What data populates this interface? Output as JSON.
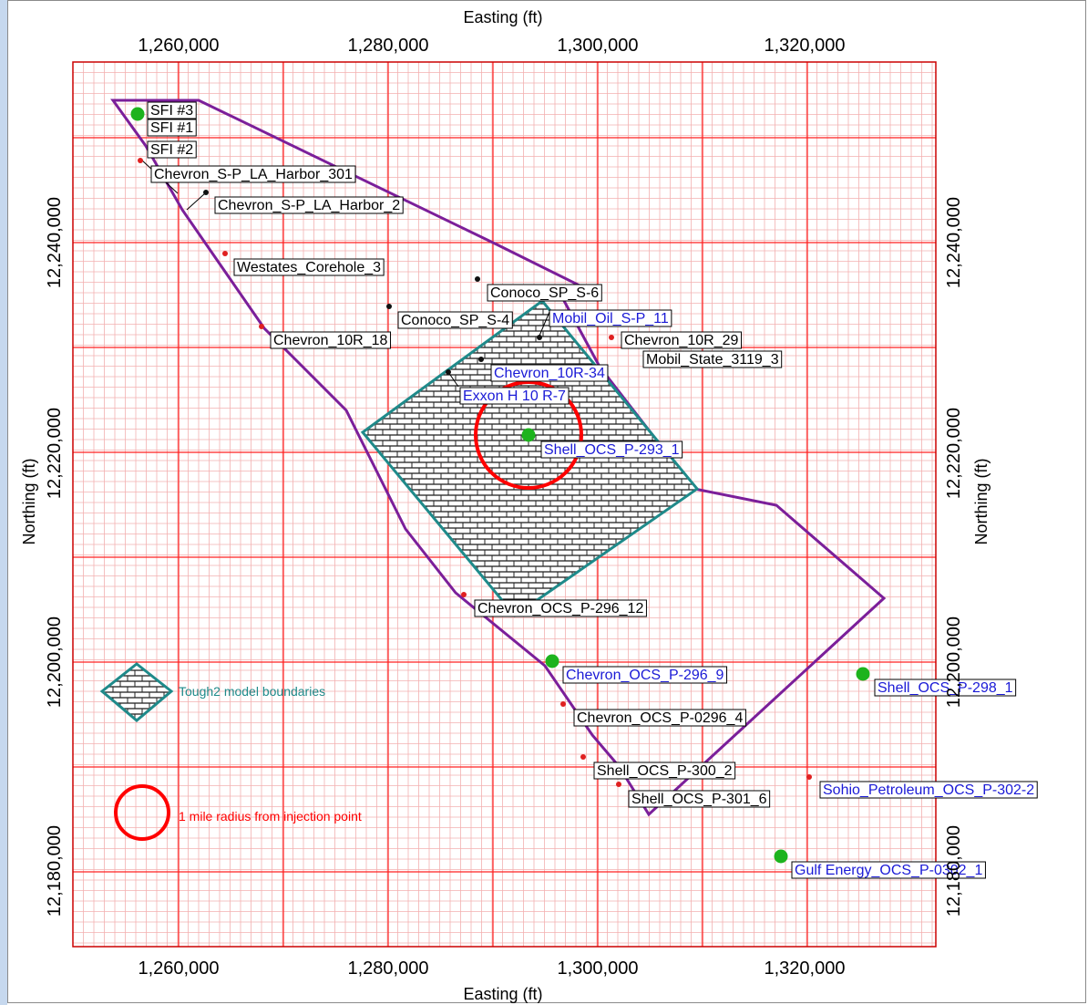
{
  "axes": {
    "x_title": "Easting (ft)",
    "y_title": "Northing (ft)",
    "x_ticks": [
      "1,260,000",
      "1,280,000",
      "1,300,000",
      "1,320,000"
    ],
    "y_ticks": [
      "12,240,000",
      "12,220,000",
      "12,200,000",
      "12,180,000"
    ]
  },
  "legend": {
    "tough2_label": "Tough2 model boundaries",
    "radius_label": "1 mile radius from injection point"
  },
  "wells": [
    {
      "label": "SFI #3",
      "color": "#000000"
    },
    {
      "label": "SFI #1",
      "color": "#000000"
    },
    {
      "label": "SFI #2",
      "color": "#000000"
    },
    {
      "label": "Chevron_S-P_LA_Harbor_301",
      "color": "#000000"
    },
    {
      "label": "Chevron_S-P_LA_Harbor_2",
      "color": "#000000"
    },
    {
      "label": "Westates_Corehole_3",
      "color": "#000000"
    },
    {
      "label": "Conoco_SP_S-6",
      "color": "#000000"
    },
    {
      "label": "Conoco_SP_S-4",
      "color": "#000000"
    },
    {
      "label": "Mobil_Oil_S-P_11",
      "color": "#1a1ad6"
    },
    {
      "label": "Chevron_10R_18",
      "color": "#000000"
    },
    {
      "label": "Chevron_10R_29",
      "color": "#000000"
    },
    {
      "label": "Mobil_State_3119_3",
      "color": "#000000"
    },
    {
      "label": "Chevron_10R-34",
      "color": "#1a1ad6"
    },
    {
      "label": "Exxon H 10 R-7",
      "color": "#1a1ad6"
    },
    {
      "label": "Shell_OCS_P-293_1",
      "color": "#1a1ad6"
    },
    {
      "label": "Chevron_OCS_P-296_12",
      "color": "#000000"
    },
    {
      "label": "Chevron_OCS_P-296_9",
      "color": "#1a1ad6"
    },
    {
      "label": "Shell_OCS_P-298_1",
      "color": "#1a1ad6"
    },
    {
      "label": "Chevron_OCS_P-0296_4",
      "color": "#000000"
    },
    {
      "label": "Shell_OCS_P-300_2",
      "color": "#000000"
    },
    {
      "label": "Shell_OCS_P-301_6",
      "color": "#000000"
    },
    {
      "label": "Sohio_Petroleum_OCS_P-302-2",
      "color": "#1a1ad6"
    },
    {
      "label": "Gulf Energy_OCS_P-0302_1",
      "color": "#1a1ad6"
    }
  ]
}
